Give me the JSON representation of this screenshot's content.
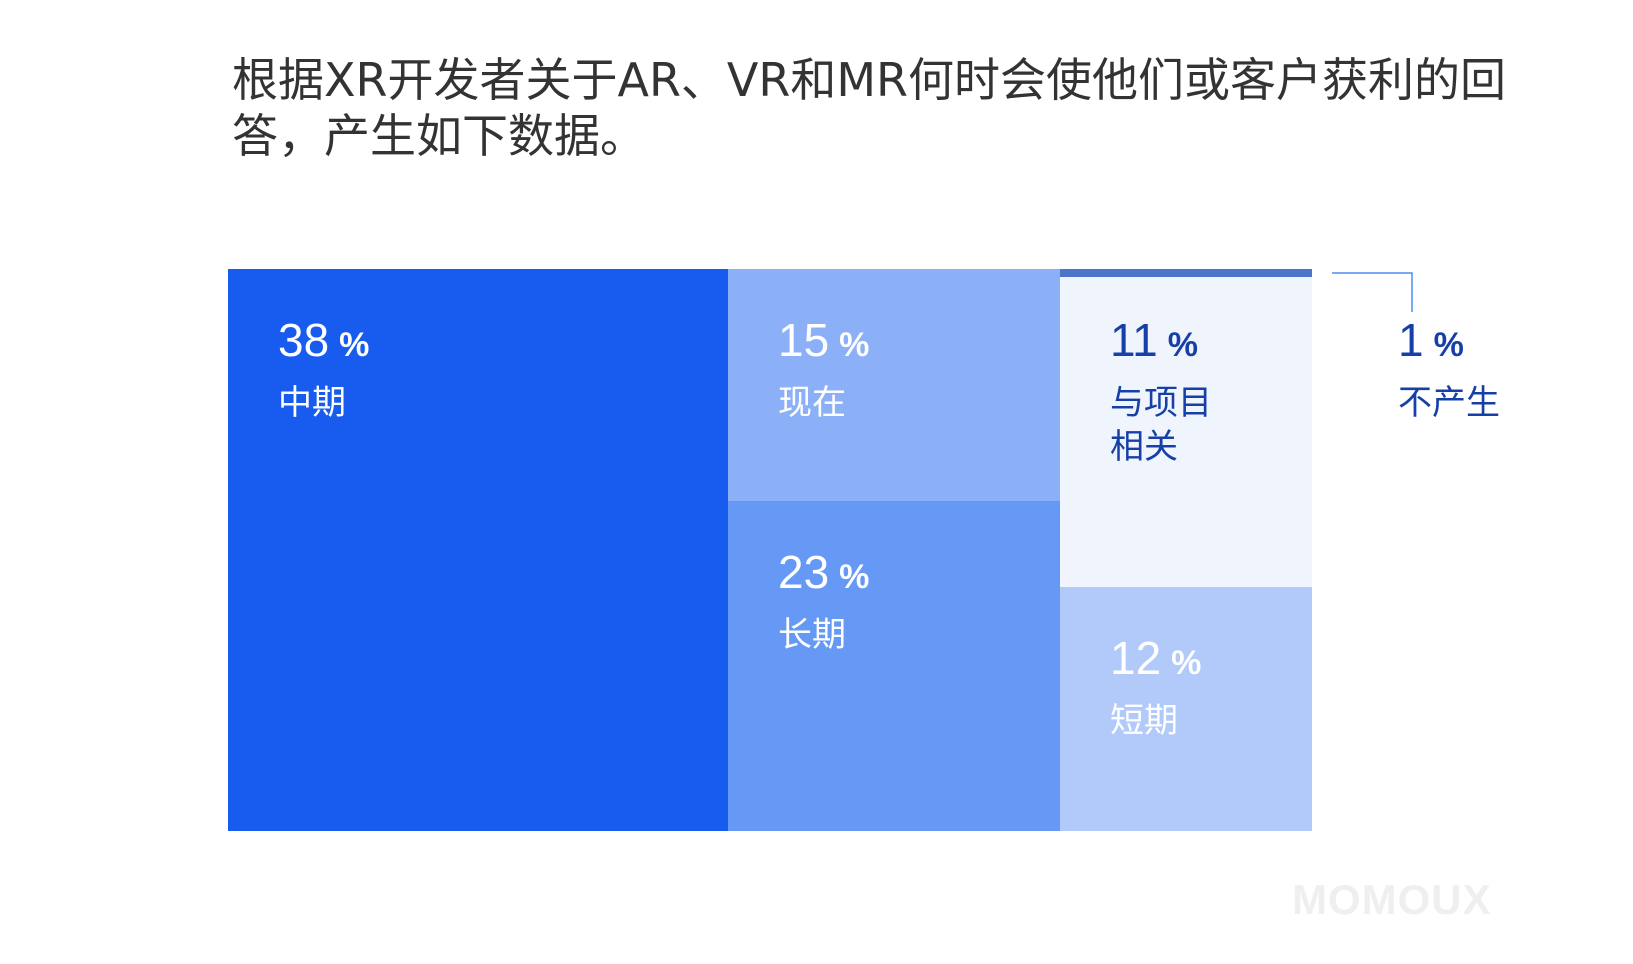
{
  "chart_data": {
    "type": "treemap",
    "title": "根据XR开发者关于AR、VR和MR何时会使他们或客户获利的回答，产生如下数据。",
    "unit": "%",
    "segments": [
      {
        "label": "中期",
        "value": 38,
        "color": "#175cef",
        "text_color": "#ffffff"
      },
      {
        "label": "现在",
        "value": 15,
        "color": "#8cb0f8",
        "text_color": "#ffffff"
      },
      {
        "label": "长期",
        "value": 23,
        "color": "#6699f5",
        "text_color": "#ffffff"
      },
      {
        "label": "与项目\n相关",
        "value": 11,
        "color": "#f0f4fd",
        "text_color": "#1640a8"
      },
      {
        "label": "短期",
        "value": 12,
        "color": "#b2cafa",
        "text_color": "#ffffff"
      },
      {
        "label": "不产生",
        "value": 1,
        "color": "#4c74c9",
        "text_color": "#1640a8"
      }
    ]
  },
  "watermark": "MOMOUX"
}
